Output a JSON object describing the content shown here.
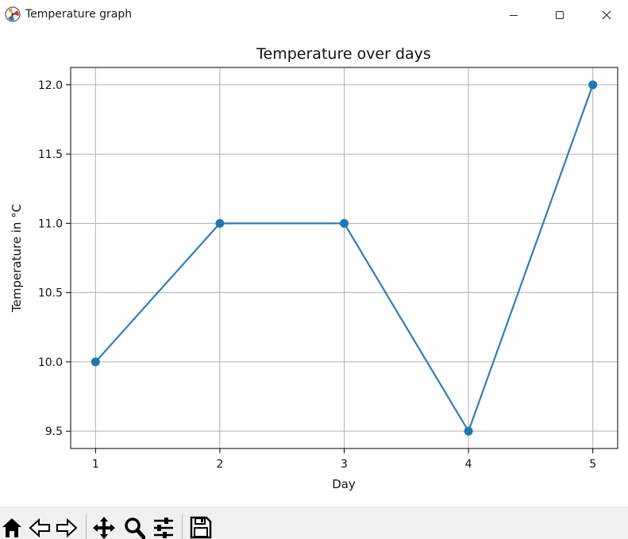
{
  "window": {
    "title": "Temperature graph"
  },
  "colors": {
    "line": "#2e7fb8",
    "marker": "#1f77b4",
    "grid": "#b0b0b0",
    "toolbar_bg": "#f0f0f0"
  },
  "toolbar": {
    "buttons": [
      "home-icon",
      "back-icon",
      "forward-icon",
      "pan-icon",
      "zoom-icon",
      "configure-subplots-icon",
      "save-icon"
    ]
  },
  "chart_data": {
    "type": "line",
    "title": "Temperature over days",
    "xlabel": "Day",
    "ylabel": "Temperature in °C",
    "x": [
      1,
      2,
      3,
      4,
      5
    ],
    "y": [
      10.0,
      11.0,
      11.0,
      9.5,
      12.0
    ],
    "xticks": [
      "1",
      "2",
      "3",
      "4",
      "5"
    ],
    "yticks": [
      "9.5",
      "10.0",
      "10.5",
      "11.0",
      "11.5",
      "12.0"
    ],
    "ytick_values": [
      9.5,
      10.0,
      10.5,
      11.0,
      11.5,
      12.0
    ],
    "xlim": [
      0.8,
      5.2
    ],
    "ylim": [
      9.375,
      12.125
    ],
    "grid": true,
    "marker": "circle"
  }
}
